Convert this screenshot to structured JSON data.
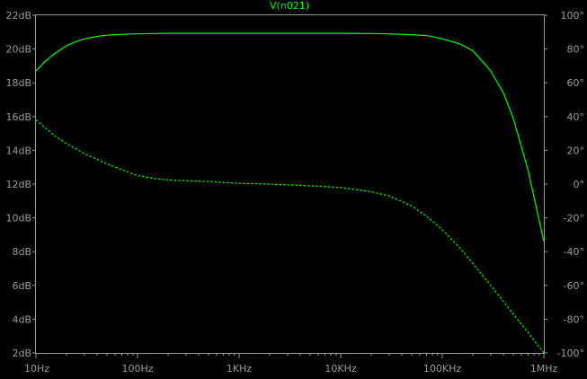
{
  "colors": {
    "background": "#000000",
    "frame": "#9a9a9a",
    "axis_text": "#9a9a9a",
    "trace": "#00ff00"
  },
  "chart_data": {
    "type": "line",
    "title": "V(n021)",
    "x_axis": {
      "scale": "log",
      "range_hz": [
        10,
        1000000
      ],
      "ticks": [
        {
          "value": 10,
          "label": "10Hz"
        },
        {
          "value": 100,
          "label": "100Hz"
        },
        {
          "value": 1000,
          "label": "1KHz"
        },
        {
          "value": 10000,
          "label": "10KHz"
        },
        {
          "value": 100000,
          "label": "100KHz"
        },
        {
          "value": 1000000,
          "label": "1MHz"
        }
      ]
    },
    "y_left": {
      "unit": "dB",
      "range": [
        2,
        22
      ],
      "ticks": [
        {
          "value": 22,
          "label": "22dB"
        },
        {
          "value": 20,
          "label": "20dB"
        },
        {
          "value": 18,
          "label": "18dB"
        },
        {
          "value": 16,
          "label": "16dB"
        },
        {
          "value": 14,
          "label": "14dB"
        },
        {
          "value": 12,
          "label": "12dB"
        },
        {
          "value": 10,
          "label": "10dB"
        },
        {
          "value": 8,
          "label": "8dB"
        },
        {
          "value": 6,
          "label": "6dB"
        },
        {
          "value": 4,
          "label": "4dB"
        },
        {
          "value": 2,
          "label": "2dB"
        }
      ]
    },
    "y_right": {
      "unit": "degrees",
      "range": [
        -100,
        100
      ],
      "ticks": [
        {
          "value": 100,
          "label": "100°"
        },
        {
          "value": 80,
          "label": "80°"
        },
        {
          "value": 60,
          "label": "60°"
        },
        {
          "value": 40,
          "label": "40°"
        },
        {
          "value": 20,
          "label": "20°"
        },
        {
          "value": 0,
          "label": "0°"
        },
        {
          "value": -20,
          "label": "-20°"
        },
        {
          "value": -40,
          "label": "-40°"
        },
        {
          "value": -60,
          "label": "-60°"
        },
        {
          "value": -80,
          "label": "-80°"
        },
        {
          "value": -100,
          "label": "-100°"
        }
      ]
    },
    "grid": false,
    "series": [
      {
        "kind": "magnitude",
        "axis": "left",
        "style": "solid",
        "x": [
          10,
          12,
          15,
          20,
          25,
          30,
          40,
          50,
          70,
          100,
          150,
          200,
          300,
          500,
          1000,
          3000,
          10000,
          20000,
          30000,
          50000,
          70000,
          100000,
          150000,
          200000,
          300000,
          400000,
          500000,
          700000,
          1000000
        ],
        "y": [
          18.7,
          19.2,
          19.7,
          20.2,
          20.45,
          20.6,
          20.75,
          20.82,
          20.87,
          20.9,
          20.92,
          20.93,
          20.93,
          20.93,
          20.93,
          20.93,
          20.93,
          20.92,
          20.9,
          20.85,
          20.8,
          20.6,
          20.3,
          19.9,
          18.7,
          17.4,
          15.9,
          12.8,
          8.6
        ]
      },
      {
        "kind": "phase",
        "axis": "right",
        "style": "dashed",
        "x": [
          10,
          15,
          20,
          30,
          50,
          70,
          100,
          150,
          200,
          300,
          500,
          1000,
          2000,
          5000,
          10000,
          20000,
          30000,
          50000,
          70000,
          100000,
          150000,
          200000,
          300000,
          500000,
          700000,
          1000000
        ],
        "y": [
          38,
          29,
          24,
          18,
          12,
          8.5,
          5,
          3.2,
          2.5,
          2,
          1.5,
          0.5,
          0,
          -1,
          -2,
          -4.5,
          -7,
          -13,
          -19,
          -27,
          -38,
          -47,
          -60,
          -77,
          -88,
          -100
        ]
      }
    ]
  }
}
